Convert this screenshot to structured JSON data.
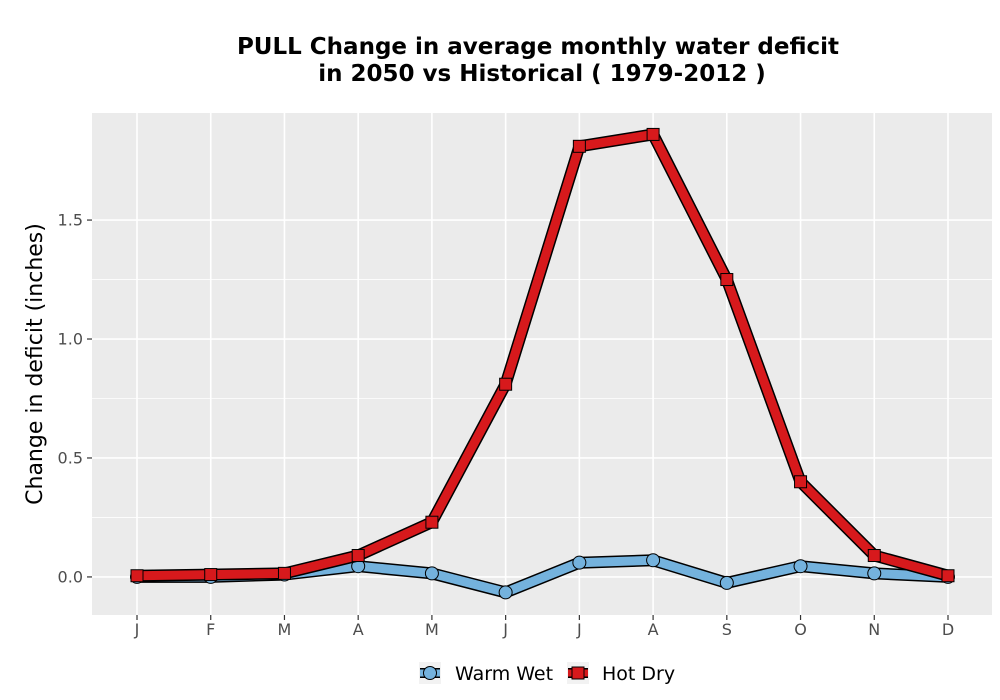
{
  "chart_data": {
    "type": "line",
    "title_line1": "PULL  Change in average monthly water deficit",
    "title_line2": "in 2050 vs Historical ( 1979-2012 )",
    "xlabel": "",
    "ylabel": "Change in deficit (inches)",
    "categories": [
      "J",
      "F",
      "M",
      "A",
      "M",
      "J",
      "J",
      "A",
      "S",
      "O",
      "N",
      "D"
    ],
    "ylim": [
      -0.16,
      1.95
    ],
    "yticks": [
      0.0,
      0.5,
      1.0,
      1.5
    ],
    "ytick_labels": [
      "0.0",
      "0.5",
      "1.0",
      "1.5"
    ],
    "grid": true,
    "legend_position": "bottom",
    "series": [
      {
        "name": "Warm Wet",
        "marker": "circle",
        "color": "#74b2dd",
        "values": [
          0.0,
          0.0,
          0.01,
          0.045,
          0.015,
          -0.065,
          0.06,
          0.07,
          -0.025,
          0.045,
          0.015,
          0.0
        ]
      },
      {
        "name": "Hot Dry",
        "marker": "square",
        "color": "#d7191c",
        "values": [
          0.005,
          0.01,
          0.015,
          0.09,
          0.23,
          0.81,
          1.81,
          1.86,
          1.25,
          0.4,
          0.09,
          0.005
        ]
      }
    ]
  },
  "colors": {
    "panel_background": "#ebebeb",
    "grid": "#ffffff",
    "outline": "#000000"
  }
}
